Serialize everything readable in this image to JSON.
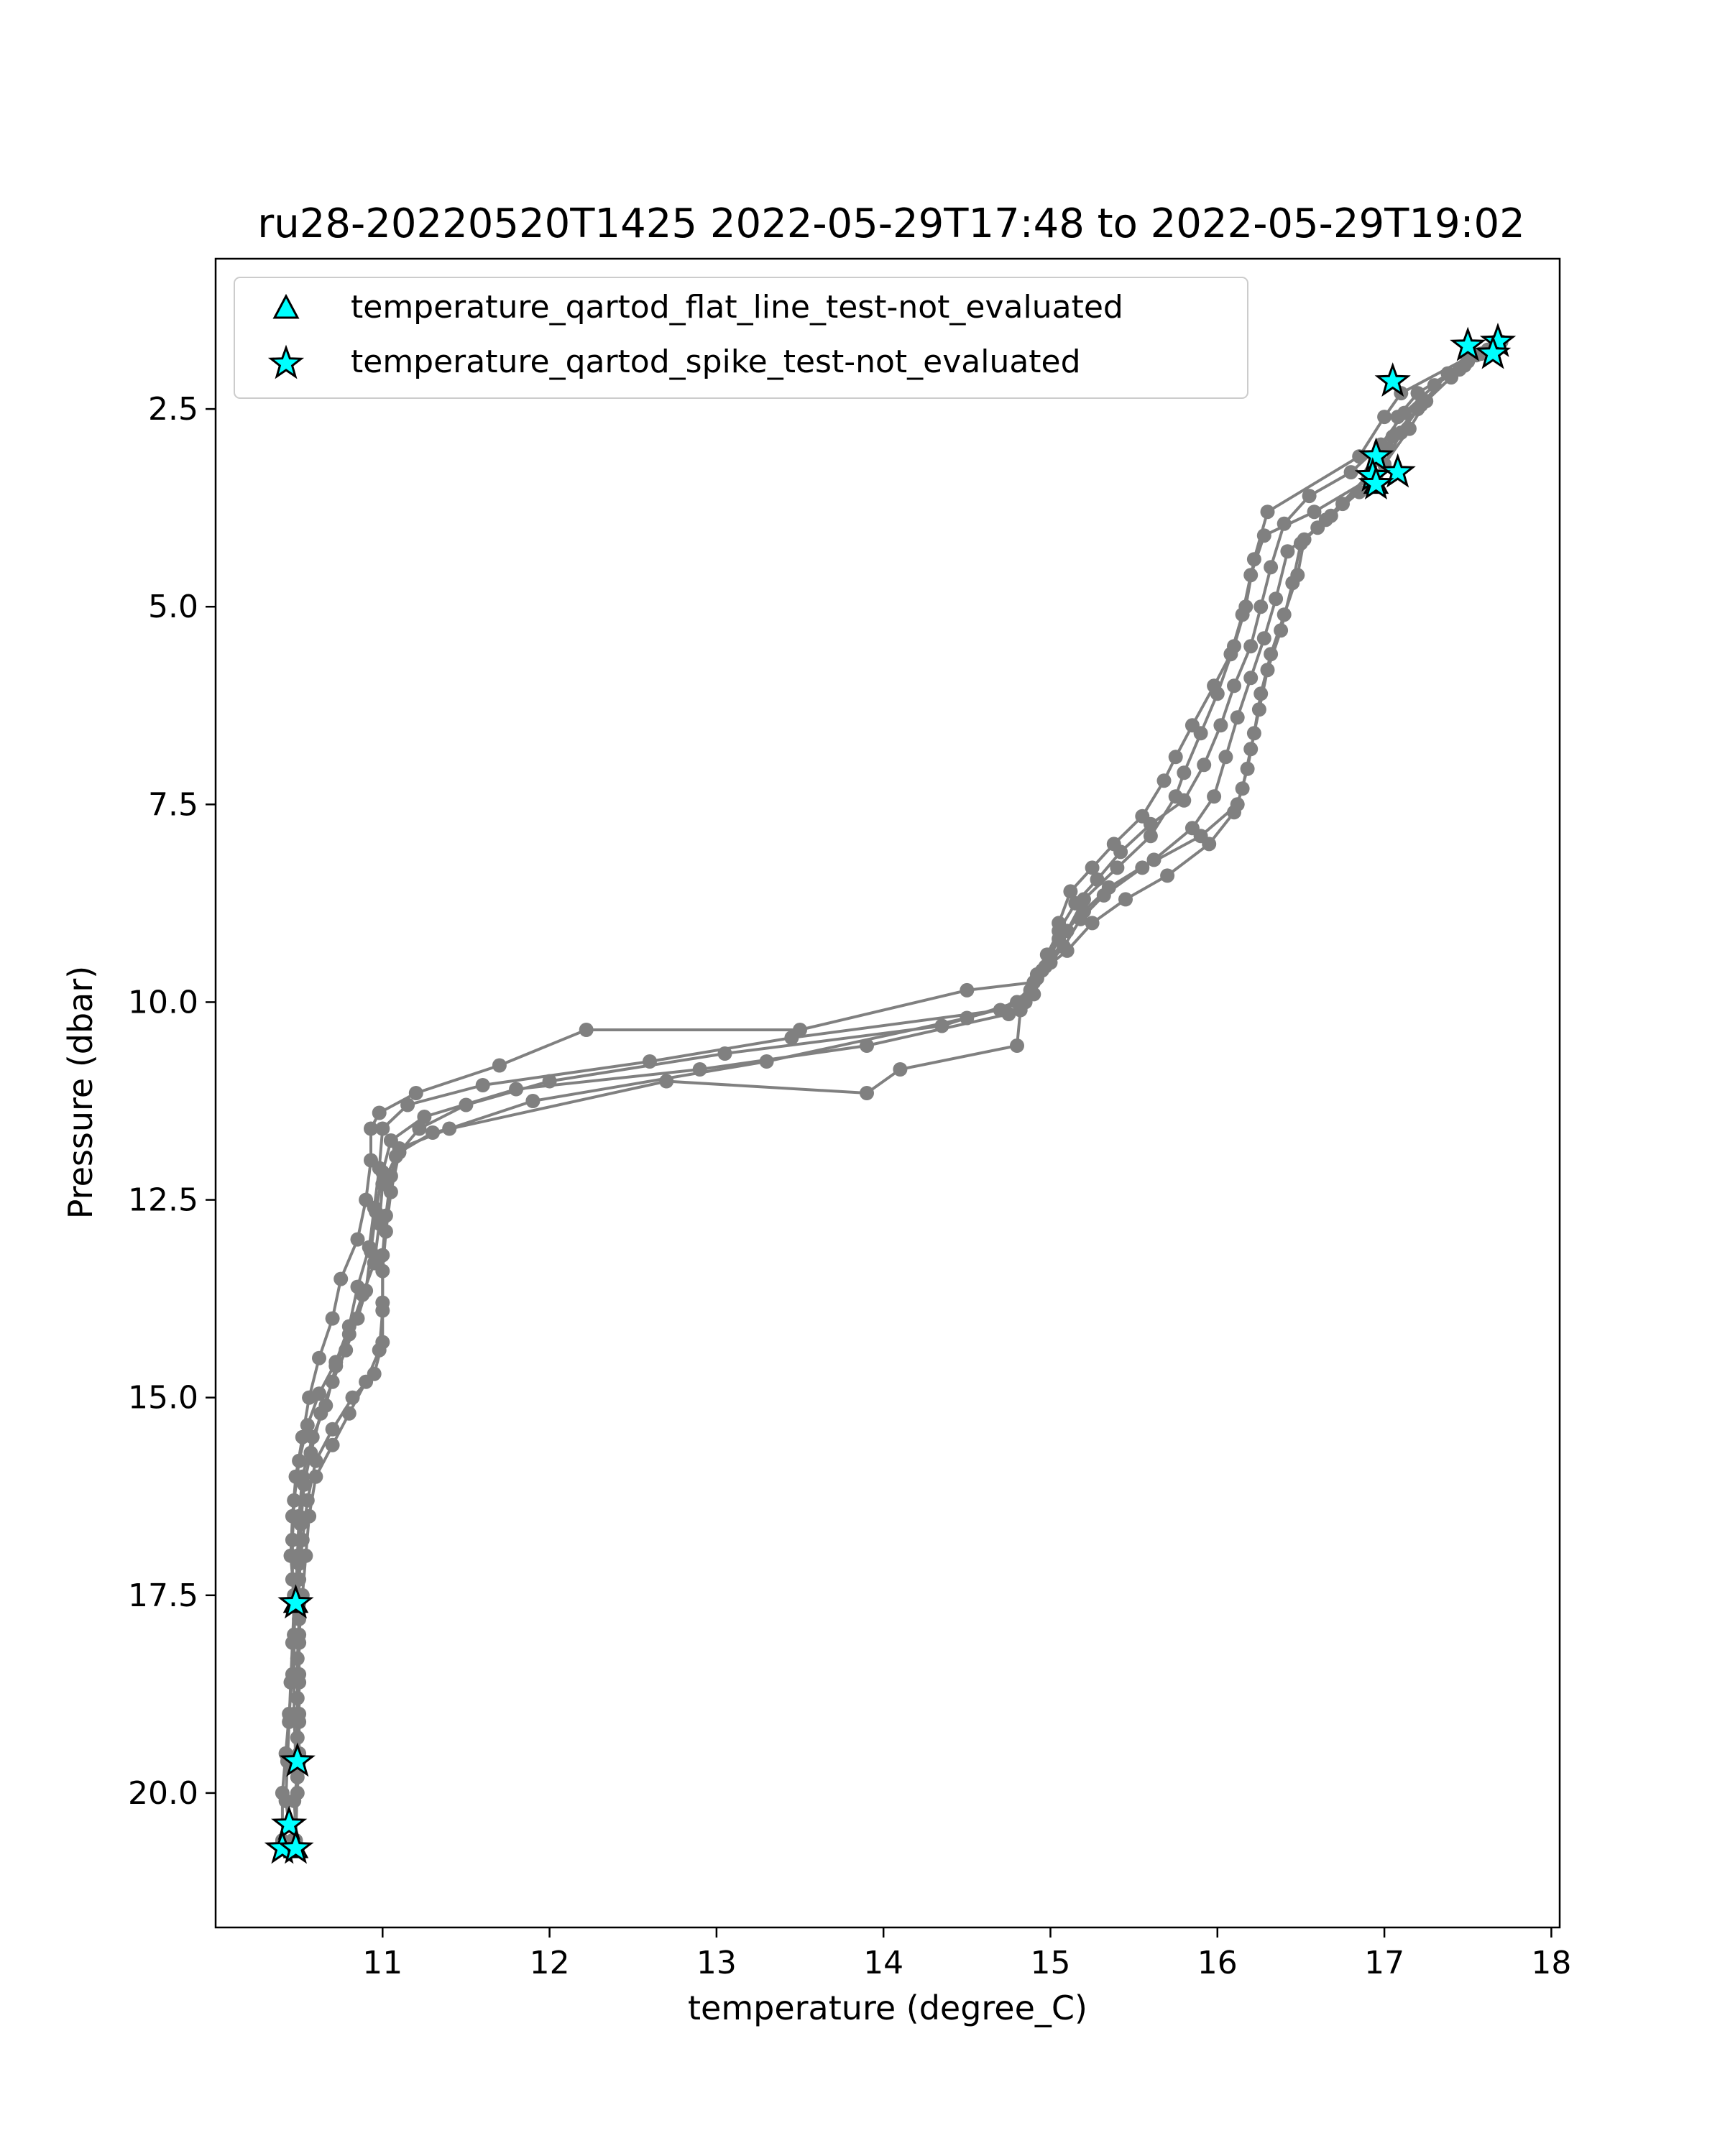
{
  "chart_data": {
    "type": "line",
    "title": "ru28-20220520T1425 2022-05-29T17:48 to 2022-05-29T19:02",
    "xlabel": "temperature (degree_C)",
    "ylabel": "Pressure (dbar)",
    "xlim": [
      10.0,
      18.05
    ],
    "ylim": [
      21.7,
      0.6
    ],
    "y_inverted": true,
    "xticks": [
      11,
      12,
      13,
      14,
      15,
      16,
      17,
      18
    ],
    "xtick_labels": [
      "11",
      "12",
      "13",
      "14",
      "15",
      "16",
      "17",
      "18"
    ],
    "yticks": [
      2.5,
      5.0,
      7.5,
      10.0,
      12.5,
      15.0,
      17.5,
      20.0
    ],
    "ytick_labels": [
      "2.5",
      "5.0",
      "7.5",
      "10.0",
      "12.5",
      "15.0",
      "17.5",
      "20.0"
    ],
    "line_color": "#808080",
    "marker_color": "#00FFFF",
    "legend": {
      "placement": "top-left",
      "entries": [
        {
          "label": "temperature_qartod_flat_line_test-not_evaluated",
          "marker": "triangle"
        },
        {
          "label": "temperature_qartod_spike_test-not_evaluated",
          "marker": "star"
        }
      ]
    },
    "series": [
      {
        "points": [
          [
            17.66,
            1.7
          ],
          [
            17.5,
            1.85
          ],
          [
            17.1,
            2.3
          ],
          [
            17.0,
            2.6
          ],
          [
            16.85,
            3.1
          ],
          [
            16.3,
            3.8
          ],
          [
            16.22,
            4.4
          ],
          [
            16.17,
            5.0
          ],
          [
            16.1,
            5.5
          ],
          [
            16.0,
            6.1
          ],
          [
            15.9,
            6.6
          ],
          [
            15.8,
            7.1
          ],
          [
            15.75,
            7.4
          ],
          [
            15.6,
            7.9
          ],
          [
            15.4,
            8.3
          ],
          [
            15.2,
            8.7
          ],
          [
            15.1,
            9.1
          ],
          [
            15.0,
            9.5
          ],
          [
            14.9,
            9.75
          ],
          [
            14.5,
            9.85
          ],
          [
            13.5,
            10.35
          ],
          [
            12.22,
            10.35
          ],
          [
            11.7,
            10.8
          ],
          [
            11.2,
            11.15
          ],
          [
            10.98,
            11.4
          ],
          [
            10.93,
            11.6
          ],
          [
            10.93,
            12.0
          ],
          [
            10.9,
            12.5
          ],
          [
            10.85,
            13.0
          ],
          [
            10.75,
            13.5
          ],
          [
            10.7,
            14.0
          ],
          [
            10.62,
            14.5
          ],
          [
            10.56,
            15.0
          ],
          [
            10.52,
            15.5
          ],
          [
            10.48,
            16.0
          ],
          [
            10.46,
            16.5
          ],
          [
            10.45,
            17.0
          ],
          [
            10.47,
            17.5
          ],
          [
            10.47,
            18.0
          ],
          [
            10.46,
            18.5
          ],
          [
            10.44,
            19.0
          ],
          [
            10.42,
            19.5
          ],
          [
            10.4,
            20.0
          ],
          [
            10.4,
            20.6
          ]
        ]
      },
      {
        "points": [
          [
            17.7,
            1.65
          ],
          [
            17.5,
            1.9
          ],
          [
            17.2,
            2.3
          ],
          [
            17.08,
            2.6
          ],
          [
            17.02,
            3.0
          ],
          [
            16.92,
            3.3
          ],
          [
            16.65,
            3.9
          ],
          [
            16.5,
            4.2
          ],
          [
            16.45,
            4.7
          ],
          [
            16.38,
            5.3
          ],
          [
            16.3,
            5.8
          ],
          [
            16.25,
            6.3
          ],
          [
            16.2,
            6.8
          ],
          [
            16.15,
            7.3
          ],
          [
            16.1,
            7.6
          ],
          [
            15.95,
            8.0
          ],
          [
            15.7,
            8.4
          ],
          [
            15.45,
            8.7
          ],
          [
            15.25,
            9.0
          ],
          [
            15.1,
            9.35
          ],
          [
            14.92,
            9.65
          ],
          [
            14.85,
            10.0
          ],
          [
            14.5,
            10.2
          ],
          [
            13.3,
            10.75
          ],
          [
            11.9,
            11.25
          ],
          [
            11.4,
            11.6
          ],
          [
            11.1,
            11.85
          ],
          [
            11.05,
            12.2
          ],
          [
            11.02,
            12.7
          ],
          [
            11.0,
            13.2
          ],
          [
            11.0,
            13.8
          ],
          [
            11.0,
            14.3
          ],
          [
            10.95,
            14.7
          ],
          [
            10.82,
            15.0
          ],
          [
            10.7,
            15.4
          ],
          [
            10.6,
            15.8
          ],
          [
            10.55,
            16.3
          ],
          [
            10.52,
            16.8
          ],
          [
            10.5,
            17.3
          ],
          [
            10.5,
            17.8
          ],
          [
            10.49,
            18.3
          ],
          [
            10.49,
            18.8
          ],
          [
            10.49,
            19.3
          ],
          [
            10.49,
            19.8
          ],
          [
            10.48,
            20.6
          ]
        ]
      },
      {
        "points": [
          [
            17.62,
            1.75
          ],
          [
            17.45,
            2.0
          ],
          [
            17.25,
            2.4
          ],
          [
            17.15,
            2.75
          ],
          [
            16.95,
            3.35
          ],
          [
            16.75,
            3.7
          ],
          [
            16.6,
            4.0
          ],
          [
            16.42,
            4.3
          ],
          [
            16.35,
            4.9
          ],
          [
            16.28,
            5.4
          ],
          [
            16.2,
            5.9
          ],
          [
            16.12,
            6.4
          ],
          [
            16.05,
            6.9
          ],
          [
            15.98,
            7.4
          ],
          [
            15.85,
            7.8
          ],
          [
            15.62,
            8.2
          ],
          [
            15.35,
            8.55
          ],
          [
            15.2,
            8.85
          ],
          [
            15.05,
            9.2
          ],
          [
            14.97,
            9.55
          ],
          [
            14.88,
            9.85
          ],
          [
            14.7,
            10.1
          ],
          [
            13.45,
            10.45
          ],
          [
            12.6,
            10.75
          ],
          [
            11.6,
            11.05
          ],
          [
            11.15,
            11.3
          ],
          [
            11.0,
            11.6
          ],
          [
            10.98,
            12.1
          ],
          [
            10.95,
            12.6
          ],
          [
            10.92,
            13.1
          ],
          [
            10.85,
            13.6
          ],
          [
            10.8,
            14.1
          ],
          [
            10.72,
            14.55
          ],
          [
            10.62,
            14.95
          ],
          [
            10.55,
            15.35
          ],
          [
            10.5,
            15.8
          ],
          [
            10.47,
            16.3
          ],
          [
            10.46,
            16.8
          ],
          [
            10.46,
            17.3
          ],
          [
            10.47,
            17.6
          ],
          [
            10.46,
            18.1
          ],
          [
            10.45,
            18.6
          ],
          [
            10.44,
            19.1
          ],
          [
            10.43,
            19.6
          ],
          [
            10.42,
            20.1
          ],
          [
            10.44,
            20.4
          ]
        ]
      },
      {
        "points": [
          [
            17.58,
            1.8
          ],
          [
            17.38,
            2.05
          ],
          [
            17.2,
            2.5
          ],
          [
            17.05,
            2.85
          ],
          [
            16.9,
            3.4
          ],
          [
            16.58,
            3.8
          ],
          [
            16.28,
            4.1
          ],
          [
            16.2,
            4.6
          ],
          [
            16.15,
            5.1
          ],
          [
            16.08,
            5.6
          ],
          [
            15.98,
            6.0
          ],
          [
            15.85,
            6.5
          ],
          [
            15.75,
            6.9
          ],
          [
            15.68,
            7.2
          ],
          [
            15.55,
            7.65
          ],
          [
            15.38,
            8.0
          ],
          [
            15.25,
            8.3
          ],
          [
            15.12,
            8.6
          ],
          [
            15.05,
            9.0
          ],
          [
            15.0,
            9.4
          ],
          [
            14.92,
            9.7
          ],
          [
            14.8,
            10.0
          ],
          [
            14.35,
            10.3
          ],
          [
            13.05,
            10.65
          ],
          [
            12.0,
            11.0
          ],
          [
            11.5,
            11.3
          ],
          [
            11.22,
            11.6
          ],
          [
            11.08,
            11.95
          ],
          [
            11.0,
            12.3
          ],
          [
            10.98,
            12.8
          ],
          [
            10.95,
            13.3
          ],
          [
            10.88,
            13.7
          ],
          [
            10.8,
            14.2
          ],
          [
            10.72,
            14.6
          ],
          [
            10.66,
            15.1
          ],
          [
            10.58,
            15.5
          ],
          [
            10.52,
            16.0
          ],
          [
            10.5,
            16.5
          ],
          [
            10.49,
            17.0
          ],
          [
            10.48,
            17.5
          ],
          [
            10.47,
            18.0
          ],
          [
            10.47,
            18.5
          ],
          [
            10.47,
            19.0
          ],
          [
            10.48,
            19.6
          ]
        ]
      },
      {
        "points": [
          [
            17.64,
            1.78
          ],
          [
            17.48,
            1.95
          ],
          [
            17.3,
            2.2
          ],
          [
            17.12,
            2.55
          ],
          [
            16.98,
            2.95
          ],
          [
            16.8,
            3.3
          ],
          [
            16.55,
            3.6
          ],
          [
            16.4,
            3.95
          ],
          [
            16.32,
            4.5
          ],
          [
            16.26,
            5.0
          ],
          [
            16.2,
            5.5
          ],
          [
            16.1,
            6.0
          ],
          [
            16.02,
            6.5
          ],
          [
            15.92,
            7.0
          ],
          [
            15.8,
            7.45
          ],
          [
            15.6,
            7.75
          ],
          [
            15.42,
            8.1
          ],
          [
            15.28,
            8.45
          ],
          [
            15.15,
            8.75
          ],
          [
            15.05,
            9.1
          ],
          [
            14.98,
            9.4
          ],
          [
            14.9,
            9.9
          ],
          [
            14.75,
            10.15
          ],
          [
            13.9,
            10.55
          ],
          [
            12.9,
            10.85
          ],
          [
            11.8,
            11.1
          ],
          [
            11.25,
            11.45
          ],
          [
            11.05,
            11.75
          ],
          [
            11.0,
            12.15
          ],
          [
            10.96,
            12.65
          ],
          [
            10.93,
            13.15
          ],
          [
            10.9,
            13.65
          ],
          [
            10.85,
            14.0
          ],
          [
            10.78,
            14.4
          ],
          [
            10.7,
            14.8
          ],
          [
            10.63,
            15.2
          ],
          [
            10.57,
            15.7
          ],
          [
            10.53,
            16.1
          ],
          [
            10.51,
            16.6
          ],
          [
            10.5,
            17.1
          ],
          [
            10.5,
            17.6
          ],
          [
            10.5,
            18.1
          ],
          [
            10.5,
            18.6
          ],
          [
            10.5,
            19.1
          ],
          [
            10.5,
            19.6
          ],
          [
            10.47,
            20.1
          ],
          [
            10.49,
            20.7
          ]
        ]
      },
      {
        "points": [
          [
            17.55,
            1.82
          ],
          [
            17.4,
            2.1
          ],
          [
            17.22,
            2.45
          ],
          [
            17.1,
            2.8
          ],
          [
            17.0,
            3.2
          ],
          [
            16.85,
            3.55
          ],
          [
            16.68,
            3.85
          ],
          [
            16.52,
            4.15
          ],
          [
            16.48,
            4.6
          ],
          [
            16.4,
            5.1
          ],
          [
            16.32,
            5.6
          ],
          [
            16.26,
            6.1
          ],
          [
            16.22,
            6.6
          ],
          [
            16.18,
            7.05
          ],
          [
            16.12,
            7.5
          ],
          [
            15.9,
            7.9
          ],
          [
            15.55,
            8.3
          ],
          [
            15.32,
            8.65
          ],
          [
            15.18,
            8.95
          ],
          [
            15.08,
            9.3
          ],
          [
            14.95,
            9.6
          ],
          [
            14.82,
            10.1
          ],
          [
            14.8,
            10.55
          ],
          [
            14.1,
            10.85
          ],
          [
            13.9,
            11.15
          ],
          [
            12.7,
            11.0
          ],
          [
            11.3,
            11.65
          ],
          [
            11.1,
            11.9
          ],
          [
            11.05,
            12.4
          ],
          [
            11.02,
            12.9
          ],
          [
            11.0,
            13.4
          ],
          [
            11.0,
            13.9
          ],
          [
            10.98,
            14.4
          ],
          [
            10.9,
            14.8
          ],
          [
            10.8,
            15.2
          ],
          [
            10.7,
            15.6
          ],
          [
            10.6,
            16.0
          ],
          [
            10.56,
            16.5
          ],
          [
            10.54,
            17.0
          ],
          [
            10.52,
            17.5
          ],
          [
            10.5,
            18.0
          ],
          [
            10.5,
            18.5
          ],
          [
            10.5,
            19.0
          ],
          [
            10.5,
            19.5
          ],
          [
            10.49,
            20.0
          ],
          [
            10.46,
            20.6
          ]
        ]
      }
    ],
    "spike_test_points": [
      [
        17.68,
        1.65
      ],
      [
        17.5,
        1.7
      ],
      [
        17.65,
        1.8
      ],
      [
        17.05,
        2.15
      ],
      [
        16.95,
        3.1
      ],
      [
        17.08,
        3.3
      ],
      [
        16.93,
        3.35
      ],
      [
        16.95,
        3.45
      ],
      [
        10.48,
        17.6
      ],
      [
        10.49,
        19.6
      ],
      [
        10.44,
        20.4
      ],
      [
        10.4,
        20.7
      ],
      [
        10.48,
        20.7
      ]
    ],
    "flat_line_test_points": [
      [
        16.95,
        3.45
      ],
      [
        10.48,
        17.6
      ],
      [
        10.48,
        20.7
      ]
    ]
  }
}
